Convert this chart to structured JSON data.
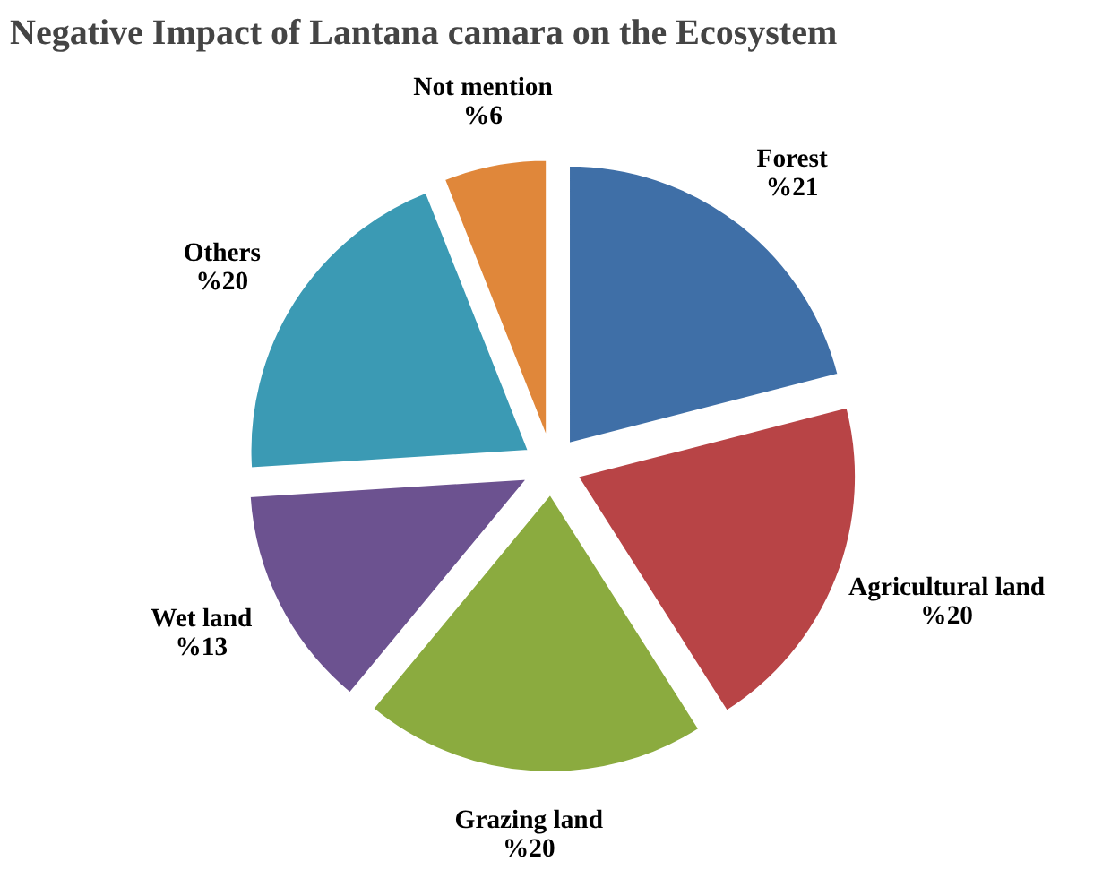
{
  "chart_data": {
    "type": "pie",
    "title": "Negative Impact of Lantana camara on the Ecosystem",
    "categories": [
      "Forest",
      "Agricultural land",
      "Grazing land",
      "Wet land",
      "Others",
      "Not mention"
    ],
    "values": [
      21,
      20,
      20,
      13,
      20,
      6
    ],
    "value_labels": [
      "%21",
      "%20",
      "%20",
      "%13",
      "%20",
      "%6"
    ],
    "colors": [
      "#3f6fa7",
      "#b84446",
      "#8bab3f",
      "#6c5290",
      "#3b9ab4",
      "#e0873a"
    ],
    "legend": false
  }
}
